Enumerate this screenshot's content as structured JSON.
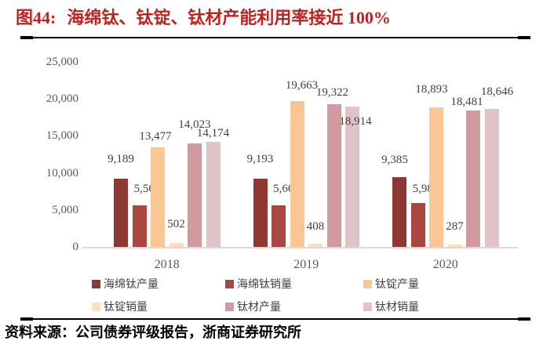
{
  "figure": {
    "title_prefix": "图44:",
    "title_text": "海绵钛、钛锭、钛材产能利用率接近 100%",
    "title_color": "#C02220"
  },
  "source": {
    "label": "资料来源：",
    "text": "公司债券评级报告，浙商证券研究所"
  },
  "chart_data": {
    "type": "bar",
    "title": "海绵钛、钛锭、钛材产能利用率接近 100%",
    "categories": [
      "2018",
      "2019",
      "2020"
    ],
    "series": [
      {
        "name": "海绵钛产量",
        "color": "#8E3834",
        "values": [
          9189,
          9193,
          9385
        ]
      },
      {
        "name": "海绵钛销量",
        "color": "#AA4741",
        "values": [
          5564,
          5665,
          5984
        ]
      },
      {
        "name": "钛锭产量",
        "color": "#FAC794",
        "values": [
          13477,
          19663,
          18893
        ]
      },
      {
        "name": "钛锭销量",
        "color": "#FBDFBE",
        "values": [
          502,
          408,
          287
        ]
      },
      {
        "name": "钛材产量",
        "color": "#D09A9E",
        "values": [
          14023,
          19322,
          18481
        ]
      },
      {
        "name": "钛材销量",
        "color": "#E0C3C6",
        "values": [
          14174,
          18914,
          18646
        ]
      }
    ],
    "data_labels": true,
    "data_label_color": "#404040",
    "ylim": [
      0,
      25000
    ],
    "y_ticks": [
      0,
      5000,
      10000,
      15000,
      20000,
      25000
    ],
    "y_tick_labels": [
      "0",
      "5,000",
      "10,000",
      "15,000",
      "20,000",
      "25,000"
    ],
    "grid": false,
    "axis_color": "#D9D9D9",
    "legend_position": "bottom",
    "legend_rows": 2,
    "legend_cols": 3,
    "label_offsets": [
      [
        [
          0,
          -12
        ],
        [
          10,
          -8
        ],
        [
          -3,
          -1
        ],
        [
          0,
          -11
        ],
        [
          0,
          -11
        ],
        [
          0,
          2
        ]
      ],
      [
        [
          0,
          -12
        ],
        [
          10,
          -8
        ],
        [
          6,
          -7
        ],
        [
          0,
          -9
        ],
        [
          -2,
          -2
        ],
        [
          4,
          32
        ]
      ],
      [
        [
          -6,
          -9
        ],
        [
          10,
          -5
        ],
        [
          -6,
          -10
        ],
        [
          0,
          -10
        ],
        [
          -8,
          2
        ],
        [
          7,
          -9
        ]
      ]
    ]
  }
}
